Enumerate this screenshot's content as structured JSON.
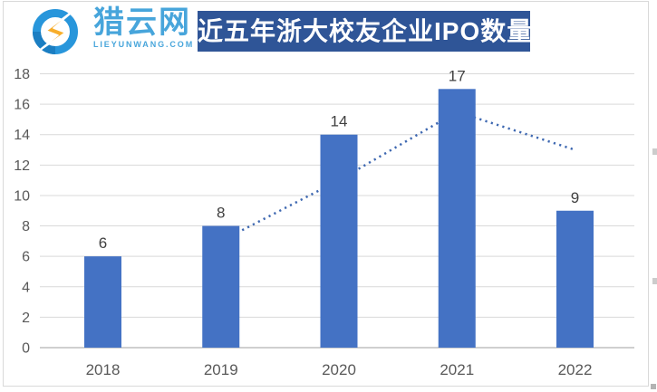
{
  "brand": {
    "name": "猎云网",
    "domain": "LIEYUNWANG.COM",
    "logo_ring_blue": "#2896db",
    "logo_ring_shade": "#1b7ec2",
    "logo_bolt_orange": "#f6a21e",
    "text_blue": "#47a5db"
  },
  "header": {
    "title": "近五年浙大校友企业IPO数量",
    "banner_bg": "#2f5597",
    "banner_fg": "#ffffff"
  },
  "chart_data": {
    "type": "bar",
    "title": "近五年浙大校友企业IPO数量",
    "categories": [
      "2018",
      "2019",
      "2020",
      "2021",
      "2022"
    ],
    "values": [
      6,
      8,
      14,
      17,
      9
    ],
    "data_labels": [
      "6",
      "8",
      "14",
      "17",
      "9"
    ],
    "trendline": {
      "type": "moving_average_2_period",
      "style": "dotted",
      "categories": [
        "2019",
        "2020",
        "2021",
        "2022"
      ],
      "values": [
        7,
        11,
        15.5,
        13
      ]
    },
    "xlabel": "",
    "ylabel": "",
    "ylim": [
      0,
      18
    ],
    "ytick_step": 2,
    "grid": true,
    "legend": "none",
    "bar_color": "#4472c4",
    "trend_color": "#3e68b1",
    "grid_color": "#d9d9d9",
    "axis_color": "#bfbfbf",
    "tick_label_color": "#595959",
    "data_label_color": "#404040"
  }
}
